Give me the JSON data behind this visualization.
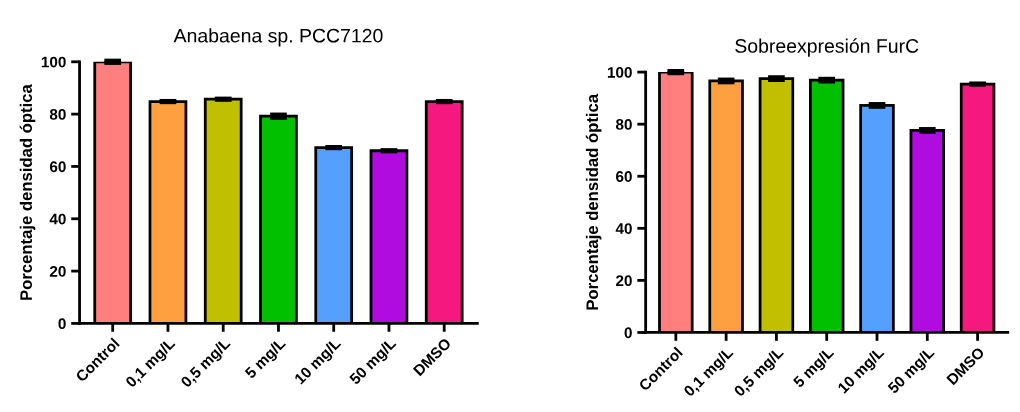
{
  "chart_data": [
    {
      "type": "bar",
      "title": "Anabaena sp. PCC7120",
      "ylabel": "Porcentaje densidad óptica",
      "categories": [
        "Control",
        "0,1 mg/L",
        "0,5 mg/L",
        "5 mg/L",
        "10 mg/L",
        "50 mg/L",
        "DMSO"
      ],
      "values": [
        100,
        84.8,
        85.7,
        79.2,
        67.2,
        66.0,
        84.8
      ],
      "errors": [
        0.4,
        0.2,
        0.2,
        0.6,
        0.2,
        0.2,
        0.2
      ],
      "colors": [
        "#ff7f7f",
        "#ffa040",
        "#c0c000",
        "#00c000",
        "#55a0ff",
        "#b00ce0",
        "#f5197f"
      ],
      "ylim": [
        0,
        100
      ],
      "yticks": [
        0,
        20,
        40,
        60,
        80,
        100
      ],
      "grid": false
    },
    {
      "type": "bar",
      "title": "Sobreexpresión FurC",
      "ylabel": "Porcentaje densidad óptica",
      "categories": [
        "Control",
        "0,1 mg/L",
        "0,5 mg/L",
        "5 mg/L",
        "10 mg/L",
        "50 mg/L",
        "DMSO"
      ],
      "values": [
        100,
        96.6,
        97.5,
        96.9,
        87.2,
        77.6,
        95.4
      ],
      "errors": [
        0.4,
        0.5,
        0.5,
        0.5,
        0.5,
        0.5,
        0.2
      ],
      "colors": [
        "#ff7f7f",
        "#ffa040",
        "#c0c000",
        "#00c000",
        "#55a0ff",
        "#b00ce0",
        "#f5197f"
      ],
      "ylim": [
        0,
        100
      ],
      "yticks": [
        0,
        20,
        40,
        60,
        80,
        100
      ],
      "grid": false
    }
  ]
}
